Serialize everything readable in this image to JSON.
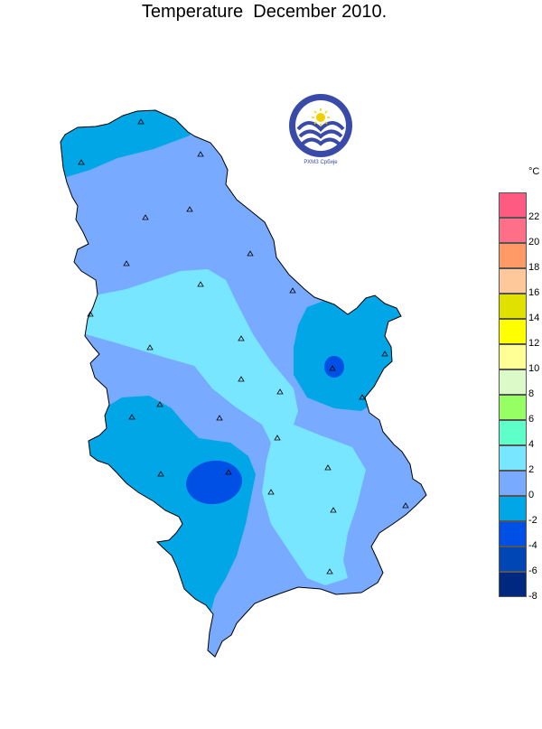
{
  "title": "Temperature  December 2010.",
  "unit": "°C",
  "logo": {
    "text": "РХМЗ  Србије",
    "icon": "rhmz-logo"
  },
  "legend": {
    "classes": [
      {
        "label": "22",
        "color": "#ff5a82"
      },
      {
        "label": "20",
        "color": "#ff7088"
      },
      {
        "label": "18",
        "color": "#ff9966"
      },
      {
        "label": "16",
        "color": "#ffc89a"
      },
      {
        "label": "14",
        "color": "#e1e100"
      },
      {
        "label": "12",
        "color": "#ffff00"
      },
      {
        "label": "10",
        "color": "#ffff96"
      },
      {
        "label": "8",
        "color": "#dcfac8"
      },
      {
        "label": "6",
        "color": "#96ff64"
      },
      {
        "label": "4",
        "color": "#5effc8"
      },
      {
        "label": "2",
        "color": "#78e6ff"
      },
      {
        "label": "0",
        "color": "#78aaff"
      },
      {
        "label": "-2",
        "color": "#00a6e6"
      },
      {
        "label": "-4",
        "color": "#0050e6"
      },
      {
        "label": "-6",
        "color": "#0046b4"
      },
      {
        "label": "-8",
        "color": "#002880"
      }
    ],
    "top_label": ""
  },
  "zone_colors": {
    "above_0": "#78aaff",
    "above_2": "#78e6ff",
    "below_0": "#00a6e6",
    "below_minus2": "#0050e6"
  },
  "stations": {
    "marker": "triangle-icon",
    "count": 30
  }
}
